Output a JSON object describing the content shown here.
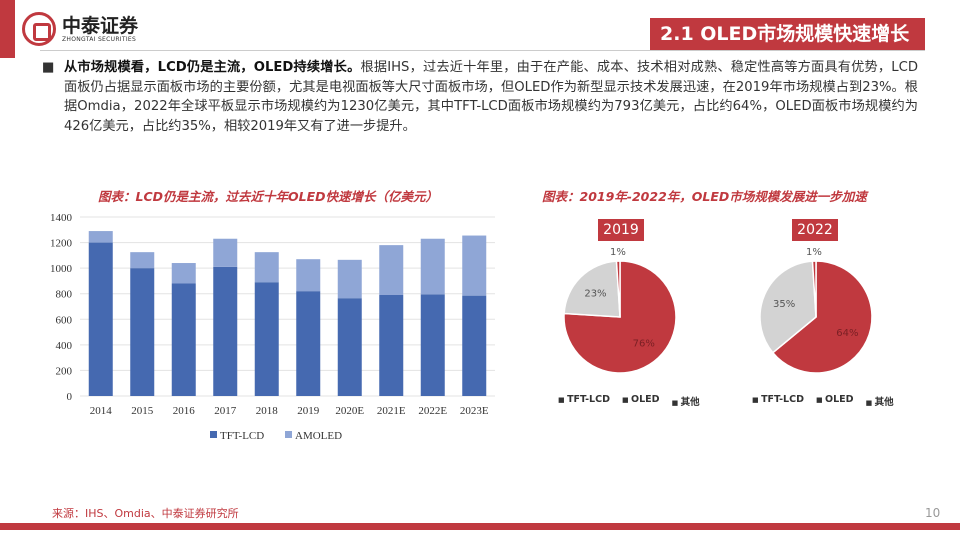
{
  "header": {
    "logo_cn": "中泰证券",
    "logo_en": "ZHONGTAI SECURITIES",
    "title": "2.1 OLED市场规模快速增长"
  },
  "intro": {
    "bold": "从市场规模看，LCD仍是主流，OLED持续增长。",
    "text": "根据IHS，过去近十年里，由于在产能、成本、技术相对成熟、稳定性高等方面具有优势，LCD面板仍占据显示面板市场的主要份额，尤其是电视面板等大尺寸面板市场，但OLED作为新型显示技术发展迅速，在2019年市场规模占到23%。根据Omdia，2022年全球平板显示市场规模约为1230亿美元，其中TFT-LCD面板市场规模约为793亿美元，占比约64%，OLED面板市场规模约为426亿美元，占比约35%，相较2019年又有了进一步提升。"
  },
  "chart_data": [
    {
      "type": "bar",
      "stacked": true,
      "title": "图表：LCD仍是主流，过去近十年OLED快速增长（亿美元）",
      "categories": [
        "2014",
        "2015",
        "2016",
        "2017",
        "2018",
        "2019",
        "2020E",
        "2021E",
        "2022E",
        "2023E"
      ],
      "series": [
        {
          "name": "TFT-LCD",
          "color": "#4569b0",
          "values": [
            1200,
            1000,
            880,
            1010,
            890,
            820,
            765,
            790,
            795,
            785
          ]
        },
        {
          "name": "AMOLED",
          "color": "#8fa6d6",
          "values": [
            90,
            125,
            160,
            220,
            235,
            250,
            300,
            390,
            435,
            470
          ]
        }
      ],
      "ylim": [
        0,
        1400
      ],
      "yticks": [
        0,
        200,
        400,
        600,
        800,
        1000,
        1200,
        1400
      ],
      "grid": true,
      "legend": "bottom"
    },
    {
      "type": "pie",
      "title": "图表：2019年-2022年，OLED市场规模发展进一步加速",
      "pies": [
        {
          "label": "2019",
          "values": [
            76,
            23,
            1
          ],
          "labels": [
            "76%",
            "23%",
            "1%"
          ]
        },
        {
          "label": "2022",
          "values": [
            64,
            35,
            1
          ],
          "labels": [
            "64%",
            "35%",
            "1%"
          ]
        }
      ],
      "categories": [
        "TFT-LCD",
        "OLED",
        "其他"
      ],
      "colors": [
        "#c0393f",
        "#d3d3d3",
        "#c0393f"
      ],
      "legend": "bottom"
    }
  ],
  "footer": {
    "source": "来源：IHS、Omdia、中泰证券研究所",
    "page": "10"
  }
}
